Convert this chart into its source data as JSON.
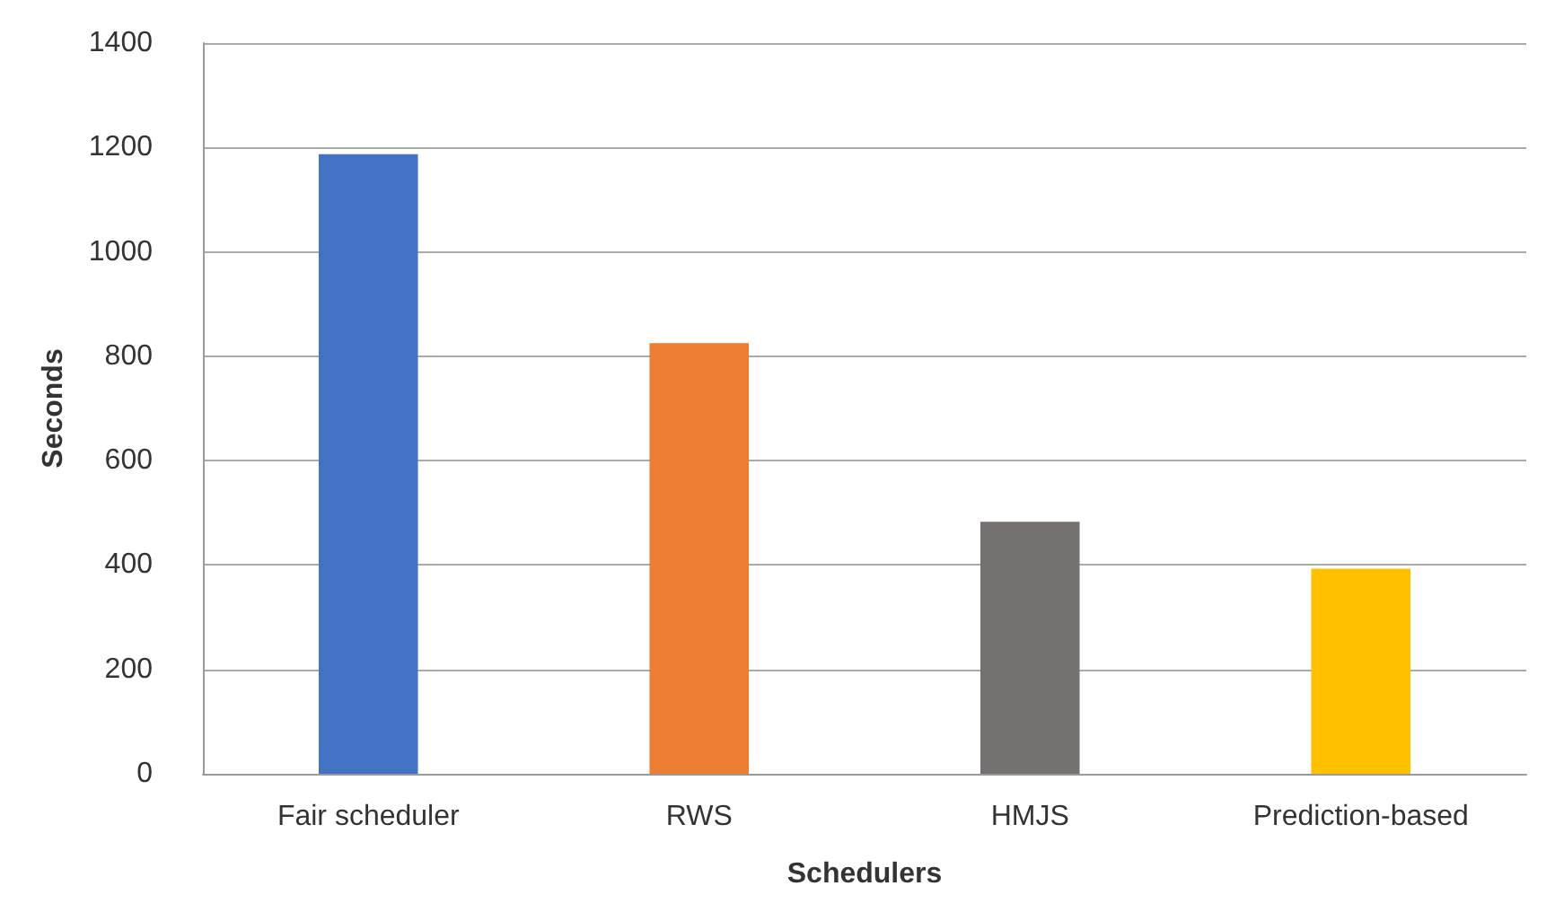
{
  "chart_data": {
    "type": "bar",
    "xlabel": "Schedulers",
    "ylabel": "Seconds",
    "categories": [
      "Fair scheduler",
      "RWS",
      "HMJS",
      "Prediction-based"
    ],
    "values": [
      1187,
      825,
      483,
      393
    ],
    "colors": [
      "#4472c4",
      "#ed7d31",
      "#767171",
      "#ffc000"
    ],
    "ylim": [
      0,
      1400
    ],
    "yticks": [
      0,
      200,
      400,
      600,
      800,
      1000,
      1200,
      1400
    ],
    "grid": "y"
  }
}
